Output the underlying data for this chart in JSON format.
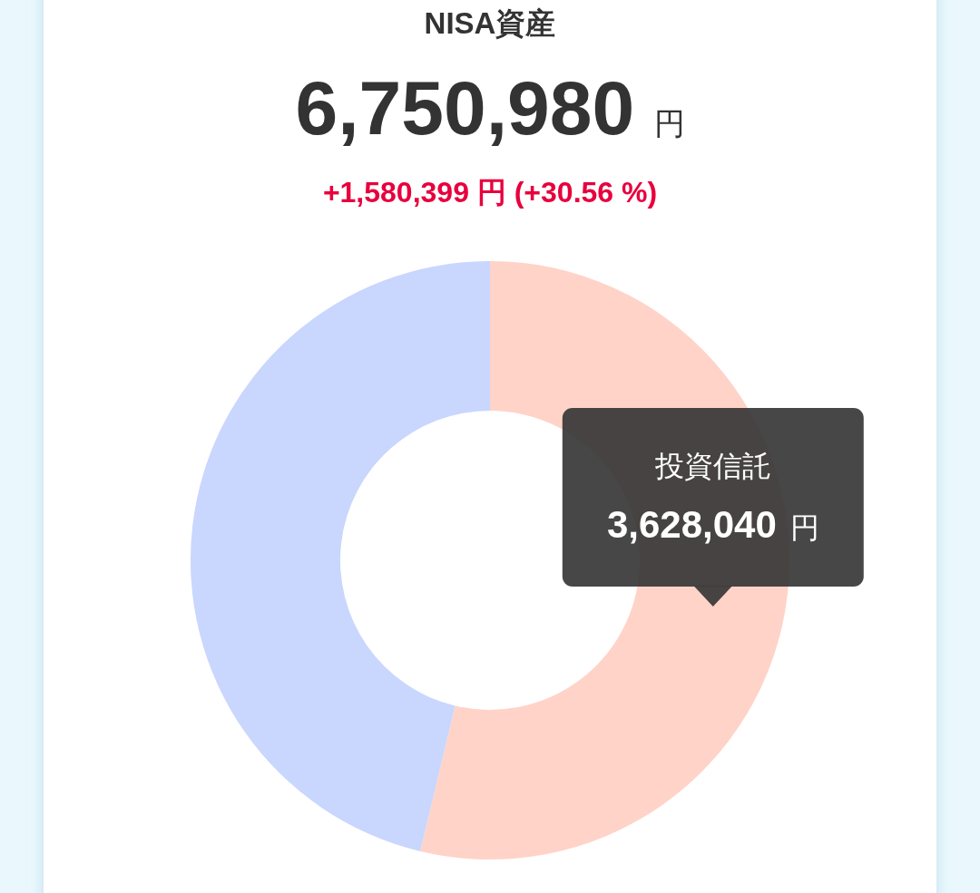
{
  "chart_data": {
    "type": "donut",
    "title": "NISA資産",
    "subtitle": "6,750,980 円",
    "annotations": [
      "+1,580,399 円 (+30.56 %)"
    ],
    "categories": [
      "投資信託",
      null
    ],
    "values": [
      3628040,
      3122940
    ],
    "colors": [
      "#ffd3c8",
      "#c9d6fe"
    ],
    "value_labels": [
      "3,628,040 円",
      null
    ]
  }
}
